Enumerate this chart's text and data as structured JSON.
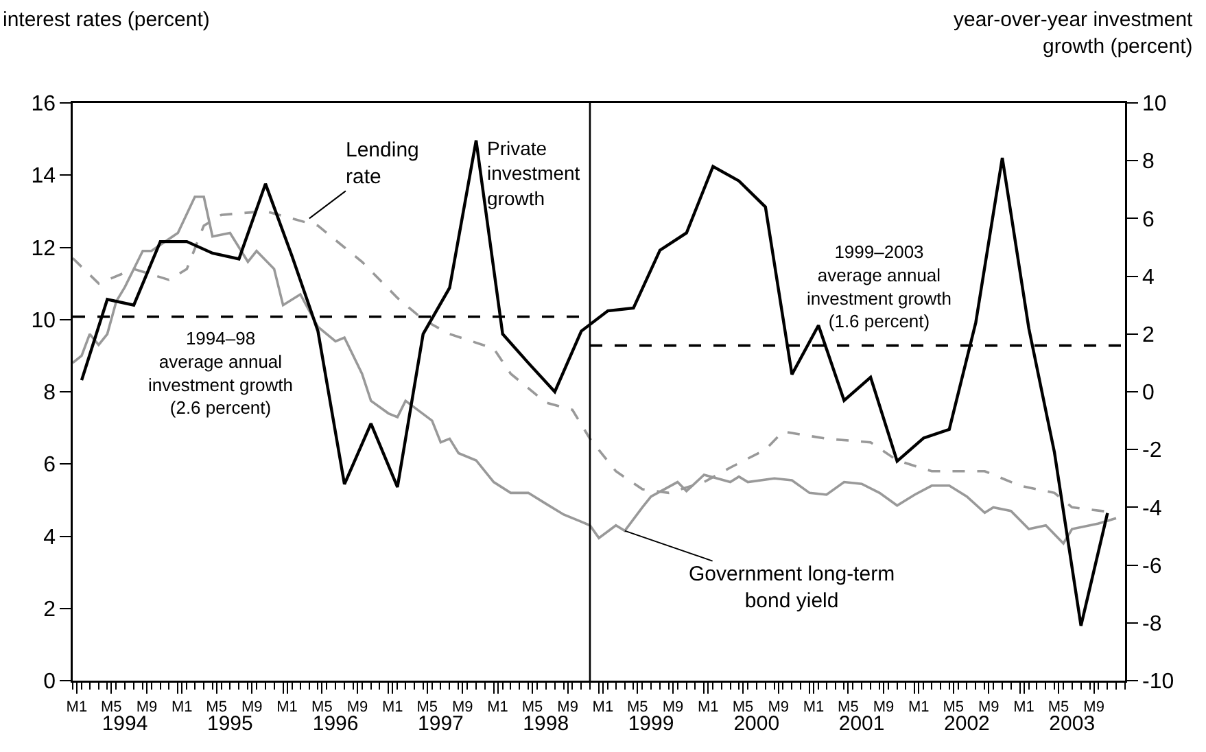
{
  "chart_data": {
    "type": "line",
    "ylabel": "interest rates (percent)",
    "y2label": "year-over-year investment\ngrowth (percent)",
    "xlim": [
      "1994-01",
      "2004-01"
    ],
    "xticks": [
      {
        "value": "1994-01-15",
        "label": "M1"
      },
      {
        "value": "1994-05-15",
        "label": "M5"
      },
      {
        "value": "1994-09-15",
        "label": "M9"
      },
      {
        "value": "1995-01-01",
        "label": null
      },
      {
        "value": "1995-01-15",
        "label": "M1"
      },
      {
        "value": "1995-05-15",
        "label": "M5"
      },
      {
        "value": "1995-09-15",
        "label": "M9"
      },
      {
        "value": "1996-01-01",
        "label": null
      },
      {
        "value": "1996-01-15",
        "label": "M1"
      },
      {
        "value": "1996-05-15",
        "label": "M5"
      },
      {
        "value": "1996-09-15",
        "label": "M9"
      },
      {
        "value": "1997-01-01",
        "label": null
      },
      {
        "value": "1997-01-15",
        "label": "M1"
      },
      {
        "value": "1997-05-15",
        "label": "M5"
      },
      {
        "value": "1997-09-15",
        "label": "M9"
      },
      {
        "value": "1998-01-01",
        "label": null
      },
      {
        "value": "1998-01-15",
        "label": "M1"
      },
      {
        "value": "1998-05-15",
        "label": "M5"
      },
      {
        "value": "1998-09-15",
        "label": "M9"
      },
      {
        "value": "1999-01-01",
        "label": null
      },
      {
        "value": "1999-01-15",
        "label": "M1"
      },
      {
        "value": "1999-05-15",
        "label": "M5"
      },
      {
        "value": "1999-09-15",
        "label": "M9"
      },
      {
        "value": "2000-01-01",
        "label": null
      },
      {
        "value": "2000-01-15",
        "label": "M1"
      },
      {
        "value": "2000-05-15",
        "label": "M5"
      },
      {
        "value": "2000-09-15",
        "label": "M9"
      },
      {
        "value": "2001-01-01",
        "label": null
      },
      {
        "value": "2001-01-15",
        "label": "M1"
      },
      {
        "value": "2001-05-15",
        "label": "M5"
      },
      {
        "value": "2001-09-15",
        "label": "M9"
      },
      {
        "value": "2002-01-01",
        "label": null
      },
      {
        "value": "2002-01-15",
        "label": "M1"
      },
      {
        "value": "2002-05-15",
        "label": "M5"
      },
      {
        "value": "2002-09-15",
        "label": "M9"
      },
      {
        "value": "2003-01-01",
        "label": null
      },
      {
        "value": "2003-01-15",
        "label": "M1"
      },
      {
        "value": "2003-05-15",
        "label": "M5"
      },
      {
        "value": "2003-09-15",
        "label": "M9"
      }
    ],
    "x2lim": [
      "1994-01",
      "2004-01"
    ],
    "x2ticks": [
      {
        "value": "1994-07-01",
        "label": "1994"
      },
      {
        "value": "1995-07-01",
        "label": "1995"
      },
      {
        "value": "1996-07-01",
        "label": "1996"
      },
      {
        "value": "1997-07-01",
        "label": "1997"
      },
      {
        "value": "1998-07-01",
        "label": "1998"
      },
      {
        "value": "1999-07-01",
        "label": "1999"
      },
      {
        "value": "2000-07-01",
        "label": "2000"
      },
      {
        "value": "2001-07-01",
        "label": "2001"
      },
      {
        "value": "2002-07-01",
        "label": "2002"
      },
      {
        "value": "2003-07-01",
        "label": "2003"
      }
    ],
    "ylim": [
      0,
      16
    ],
    "yticks": [
      0,
      2,
      4,
      6,
      8,
      10,
      12,
      14,
      16
    ],
    "y2lim": [
      -10,
      10
    ],
    "y2ticks": [
      -10,
      -8,
      -6,
      -4,
      -2,
      0,
      2,
      4,
      6,
      8,
      10
    ],
    "grid": false,
    "series": [
      {
        "axis": "y2",
        "color": "#000000",
        "line_style": "solid",
        "x": [
          "1994-02",
          "1994-05",
          "1994-08",
          "1994-11",
          "1995-02",
          "1995-05",
          "1995-08",
          "1995-11",
          "1996-02",
          "1996-05",
          "1996-08",
          "1996-11",
          "1997-02",
          "1997-05",
          "1997-08",
          "1997-11",
          "1998-02",
          "1998-05",
          "1998-08",
          "1998-11",
          "1999-02",
          "1999-05",
          "1999-08",
          "1999-11",
          "2000-02",
          "2000-05",
          "2000-08",
          "2000-11",
          "2001-02",
          "2001-05",
          "2001-08",
          "2001-11",
          "2002-02",
          "2002-05",
          "2002-08",
          "2002-11",
          "2003-02",
          "2003-05",
          "2003-08",
          "2003-11"
        ],
        "values": [
          0.4,
          3.2,
          3.0,
          5.2,
          5.2,
          4.8,
          4.6,
          7.2,
          4.7,
          2.1,
          -3.2,
          -1.1,
          -3.3,
          2.0,
          3.6,
          8.7,
          2.0,
          1.0,
          0.0,
          2.1,
          2.8,
          2.9,
          4.9,
          5.5,
          7.8,
          7.3,
          6.4,
          0.6,
          2.3,
          -0.3,
          0.5,
          -2.4,
          -1.6,
          -1.3,
          2.4,
          8.1,
          2.2,
          -2.1,
          -8.1,
          -4.2
        ]
      },
      {
        "color": "#999999",
        "line_style": "dashed",
        "x": [
          "1994-01",
          "1994-04",
          "1994-08",
          "1994-12",
          "1995-02",
          "1995-04",
          "1995-06",
          "1995-11",
          "1996-05",
          "1996-10",
          "1997-02",
          "1997-05",
          "1997-08",
          "1998-01",
          "1998-03",
          "1998-07",
          "1998-10",
          "1998-12",
          "1999-03",
          "1999-06",
          "1999-09",
          "2000-01",
          "2000-04",
          "2000-08",
          "2000-10",
          "2001-03",
          "2001-08",
          "2001-11",
          "2002-03",
          "2002-09",
          "2003-01",
          "2003-05",
          "2003-07",
          "2003-12"
        ],
        "values": [
          11.7,
          11.0,
          11.4,
          11.1,
          11.4,
          12.6,
          12.9,
          13.0,
          12.6,
          11.6,
          10.6,
          10.0,
          9.6,
          9.2,
          8.5,
          7.7,
          7.5,
          6.7,
          5.8,
          5.3,
          5.2,
          5.5,
          5.9,
          6.4,
          6.9,
          6.7,
          6.6,
          6.1,
          5.8,
          5.8,
          5.4,
          5.2,
          4.8,
          4.65
        ]
      },
      {
        "color": "#999999",
        "line_style": "solid",
        "x": [
          "1994-01",
          "1994-02",
          "1994-03",
          "1994-04",
          "1994-05",
          "1994-06",
          "1994-07",
          "1994-09",
          "1994-10",
          "1995-01",
          "1995-03",
          "1995-04",
          "1995-05",
          "1995-07",
          "1995-09",
          "1995-10",
          "1995-12",
          "1996-01",
          "1996-03",
          "1996-05",
          "1996-07",
          "1996-08",
          "1996-10",
          "1996-11",
          "1997-01",
          "1997-02",
          "1997-03",
          "1997-06",
          "1997-07",
          "1997-08",
          "1997-09",
          "1997-11",
          "1998-01",
          "1998-03",
          "1998-05",
          "1998-07",
          "1998-09",
          "1998-11",
          "1998-12",
          "1999-01",
          "1999-03",
          "1999-04",
          "1999-06",
          "1999-07",
          "1999-10",
          "1999-11",
          "2000-01",
          "2000-04",
          "2000-05",
          "2000-06",
          "2000-09",
          "2000-11",
          "2001-01",
          "2001-03",
          "2001-05",
          "2001-07",
          "2001-09",
          "2001-11",
          "2002-01",
          "2002-03",
          "2002-05",
          "2002-07",
          "2002-09",
          "2002-10",
          "2002-12",
          "2003-02",
          "2003-04",
          "2003-06",
          "2003-07",
          "2003-10",
          "2003-12"
        ],
        "values": [
          8.8,
          9.0,
          9.6,
          9.3,
          9.6,
          10.5,
          10.9,
          11.9,
          11.9,
          12.4,
          13.4,
          13.4,
          12.3,
          12.4,
          11.6,
          11.9,
          11.4,
          10.4,
          10.7,
          9.8,
          9.4,
          9.5,
          8.5,
          7.75,
          7.4,
          7.3,
          7.75,
          7.2,
          6.6,
          6.7,
          6.3,
          6.1,
          5.5,
          5.2,
          5.2,
          4.9,
          4.6,
          4.4,
          4.3,
          3.95,
          4.3,
          4.15,
          4.8,
          5.1,
          5.5,
          5.25,
          5.7,
          5.5,
          5.65,
          5.5,
          5.6,
          5.55,
          5.2,
          5.15,
          5.5,
          5.45,
          5.2,
          4.85,
          5.15,
          5.4,
          5.4,
          5.1,
          4.65,
          4.8,
          4.7,
          4.2,
          4.3,
          3.8,
          4.2,
          4.35,
          4.5
        ]
      },
      {
        "axis": "y2",
        "color": "#000000",
        "line_style": "dashed",
        "x": [
          "1994-01",
          "1998-12"
        ],
        "values": [
          2.6,
          2.6
        ]
      },
      {
        "axis": "y2",
        "color": "#000000",
        "line_style": "dashed",
        "x": [
          "1998-12",
          "2004-01"
        ],
        "values": [
          1.6,
          1.6
        ]
      }
    ],
    "ref_lines": [
      {
        "axis": "x",
        "value": "1998-12",
        "label": null,
        "color": "#000000",
        "line_style": "solid"
      }
    ],
    "annotations": [
      {
        "text": "Lending\nrate",
        "x": "1996-04",
        "y": 12.8
      },
      {
        "text": "Private\ninvestment\ngrowth",
        "x": "1997-11",
        "y": 14.96
      },
      {
        "text": "1994–98\naverage annual\ninvestment growth\n(2.6 percent)",
        "x": "1995-06",
        "y": 10.08
      },
      {
        "text": "1999–2003\naverage annual\ninvestment growth\n(1.6 percent)",
        "x": "2001-09",
        "y": 9.28
      },
      {
        "text": "Government long-term\nbond yield",
        "x": "1999-04",
        "y": 4.15
      }
    ]
  }
}
